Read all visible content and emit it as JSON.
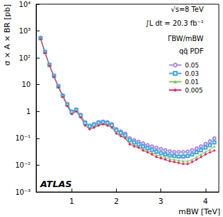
{
  "chart_data": {
    "type": "line",
    "x_label": "mBW [TeV]",
    "y_label": "σ × A × BR [pb]",
    "annotations": [
      {
        "text": "√s=8 TeV"
      },
      {
        "text": "∫L dt = 20.3 fb⁻¹"
      },
      {
        "text": "ΓBW/mBW"
      },
      {
        "text": "qq̄ PDF"
      },
      {
        "text": "ATLAS"
      }
    ],
    "log": "y",
    "grid": false,
    "legend": "upper right",
    "xlim": [
      0.2,
      4.3
    ],
    "xticks": [
      1,
      2,
      3,
      4
    ],
    "ylim": [
      0.001,
      10000
    ],
    "yticks": [
      {
        "value": 0.001,
        "label": "10⁻³"
      },
      {
        "value": 0.01,
        "label": "10⁻²"
      },
      {
        "value": 0.1,
        "label": "10⁻¹"
      },
      {
        "value": 1,
        "label": "1"
      },
      {
        "value": 10,
        "label": "10"
      },
      {
        "value": 100,
        "label": "10²"
      },
      {
        "value": 1000,
        "label": "10³"
      },
      {
        "value": 10000,
        "label": "10⁴"
      }
    ],
    "x": [
      0.3,
      0.4,
      0.5,
      0.6,
      0.7,
      0.8,
      0.9,
      1.0,
      1.1,
      1.2,
      1.3,
      1.4,
      1.5,
      1.6,
      1.7,
      1.8,
      1.9,
      2.0,
      2.1,
      2.2,
      2.3,
      2.4,
      2.5,
      2.6,
      2.7,
      2.8,
      2.9,
      3.0,
      3.1,
      3.2,
      3.3,
      3.4,
      3.5,
      3.6,
      3.7,
      3.8,
      3.9,
      4.0,
      4.1,
      4.2
    ],
    "series": [
      {
        "name": "0.05",
        "color": "#a78bd8",
        "marker": "emptyCircle",
        "line_style": "solid",
        "values": [
          560,
          170,
          56,
          22,
          9,
          4,
          1.9,
          1.0,
          1.2,
          0.75,
          0.4,
          0.3,
          0.34,
          0.4,
          0.42,
          0.4,
          0.34,
          0.22,
          0.18,
          0.15,
          0.1,
          0.085,
          0.075,
          0.065,
          0.056,
          0.05,
          0.045,
          0.04,
          0.036,
          0.033,
          0.031,
          0.031,
          0.031,
          0.032,
          0.036,
          0.042,
          0.05,
          0.062,
          0.078,
          0.1
        ]
      },
      {
        "name": "0.03",
        "color": "#46a3db",
        "marker": "emptyRect",
        "line_style": "solid",
        "values": [
          540,
          165,
          54,
          21,
          8.6,
          3.8,
          1.8,
          0.95,
          1.15,
          0.7,
          0.37,
          0.28,
          0.32,
          0.38,
          0.4,
          0.37,
          0.31,
          0.2,
          0.16,
          0.13,
          0.085,
          0.07,
          0.06,
          0.05,
          0.043,
          0.037,
          0.032,
          0.028,
          0.025,
          0.023,
          0.022,
          0.021,
          0.021,
          0.022,
          0.025,
          0.03,
          0.036,
          0.045,
          0.055,
          0.07
        ]
      },
      {
        "name": "0.01",
        "color": "#7fc36a",
        "marker": "triangle",
        "line_style": "solid",
        "values": [
          520,
          155,
          52,
          20,
          8.2,
          3.6,
          1.7,
          0.85,
          1.05,
          0.63,
          0.32,
          0.24,
          0.27,
          0.32,
          0.35,
          0.32,
          0.27,
          0.17,
          0.13,
          0.11,
          0.068,
          0.056,
          0.05,
          0.04,
          0.034,
          0.029,
          0.024,
          0.021,
          0.019,
          0.017,
          0.016,
          0.015,
          0.014,
          0.014,
          0.016,
          0.02,
          0.025,
          0.031,
          0.038,
          0.05
        ]
      },
      {
        "name": "0.005",
        "color": "#e0245a",
        "marker": "diamond",
        "line_style": "solid",
        "values": [
          500,
          150,
          50,
          19.5,
          8,
          3.5,
          1.6,
          0.8,
          1.0,
          0.6,
          0.3,
          0.22,
          0.25,
          0.3,
          0.33,
          0.3,
          0.25,
          0.15,
          0.12,
          0.1,
          0.06,
          0.05,
          0.045,
          0.035,
          0.03,
          0.025,
          0.02,
          0.018,
          0.016,
          0.014,
          0.013,
          0.012,
          0.011,
          0.011,
          0.013,
          0.016,
          0.02,
          0.025,
          0.03,
          0.035
        ]
      }
    ]
  }
}
